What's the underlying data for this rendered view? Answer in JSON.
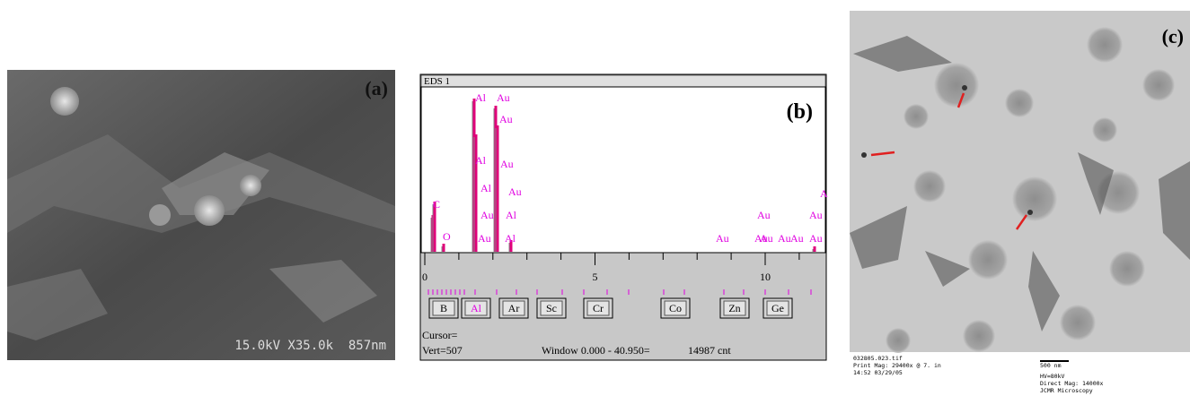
{
  "panel_a": {
    "label": "(a)",
    "scale_bar": "15.0kV X35.0k  857nm"
  },
  "panel_b": {
    "window_title": "EDS 1",
    "label": "(b)",
    "peak_labels": [
      "C",
      "O",
      "Al",
      "Au",
      "Au",
      "Al",
      "Au",
      "Al",
      "Au",
      "Au",
      "Al",
      "Au",
      "Al",
      "Au",
      "Au",
      "Au",
      "Au",
      "Au",
      "Au",
      "Au",
      "Au",
      "A"
    ],
    "xticks": [
      0,
      5,
      10
    ],
    "buttons": [
      "B",
      "Al",
      "Ar",
      "Sc",
      "Cr",
      "Co",
      "Zn",
      "Ge"
    ],
    "cursor": "Cursor=",
    "vert": "Vert=507",
    "window": "Window 0.000 - 40.950=",
    "counts": "14987 cnt"
  },
  "panel_c": {
    "label": "(c)",
    "file": "032805.023.tif",
    "print_mag": "Print Mag: 29400x @ 7. in",
    "time": "14:52 03/29/05",
    "scale": "500 nm",
    "hv": "HV=80kV",
    "direct_mag": "Direct Mag: 14000x",
    "facility": "JCMR Microscopy"
  }
}
